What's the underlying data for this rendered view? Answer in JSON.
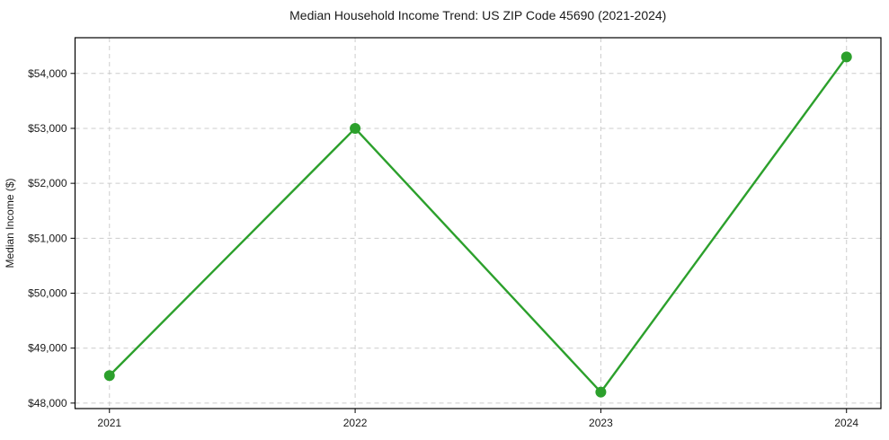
{
  "figure": {
    "title": "Median Household Income Trend: US ZIP Code 45690 (2021-2024)"
  },
  "chart_data": {
    "type": "line",
    "title": "Median Household Income Trend: US ZIP Code 45690 (2021-2024)",
    "xlabel": "",
    "ylabel": "Median Income ($)",
    "x": [
      2021,
      2022,
      2023,
      2024
    ],
    "x_tick_labels": [
      "2021",
      "2022",
      "2023",
      "2024"
    ],
    "series": [
      {
        "name": "Median household income",
        "values": [
          48500,
          53000,
          48200,
          54300
        ]
      }
    ],
    "y_ticks": [
      48000,
      49000,
      50000,
      51000,
      52000,
      53000,
      54000
    ],
    "y_tick_labels": [
      "$48,000",
      "$49,000",
      "$50,000",
      "$51,000",
      "$52,000",
      "$53,000",
      "$54,000"
    ],
    "xlim": [
      2020.86,
      2024.14
    ],
    "ylim": [
      47900,
      54650
    ],
    "grid": true,
    "grid_style": "dashed",
    "legend_position": "none",
    "marker": "circle"
  },
  "colors": {
    "line": "#2ca02c",
    "marker": "#2ca02c",
    "grid": "#cccccc",
    "axis": "#000000",
    "text": "#1a1a1a",
    "background": "#ffffff"
  }
}
